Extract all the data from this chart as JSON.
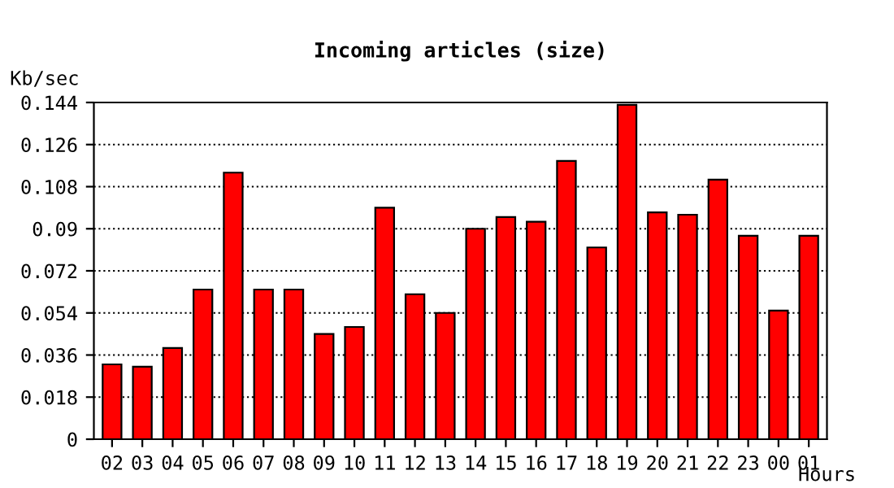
{
  "chart_data": {
    "type": "bar",
    "title": "Incoming articles (size)",
    "ylabel": "Kb/sec",
    "xlabel": "Hours",
    "categories": [
      "02",
      "03",
      "04",
      "05",
      "06",
      "07",
      "08",
      "09",
      "10",
      "11",
      "12",
      "13",
      "14",
      "15",
      "16",
      "17",
      "18",
      "19",
      "20",
      "21",
      "22",
      "23",
      "00",
      "01"
    ],
    "values": [
      0.032,
      0.031,
      0.039,
      0.064,
      0.114,
      0.064,
      0.064,
      0.045,
      0.048,
      0.099,
      0.062,
      0.054,
      0.09,
      0.095,
      0.093,
      0.119,
      0.082,
      0.143,
      0.097,
      0.096,
      0.111,
      0.087,
      0.055,
      0.087
    ],
    "color": "#ff0000",
    "ylim": [
      0,
      0.144
    ],
    "yticks": [
      0,
      0.018,
      0.036,
      0.054,
      0.072,
      0.09,
      0.108,
      0.126,
      0.144
    ],
    "grid": "y",
    "line_style": "dotted"
  }
}
